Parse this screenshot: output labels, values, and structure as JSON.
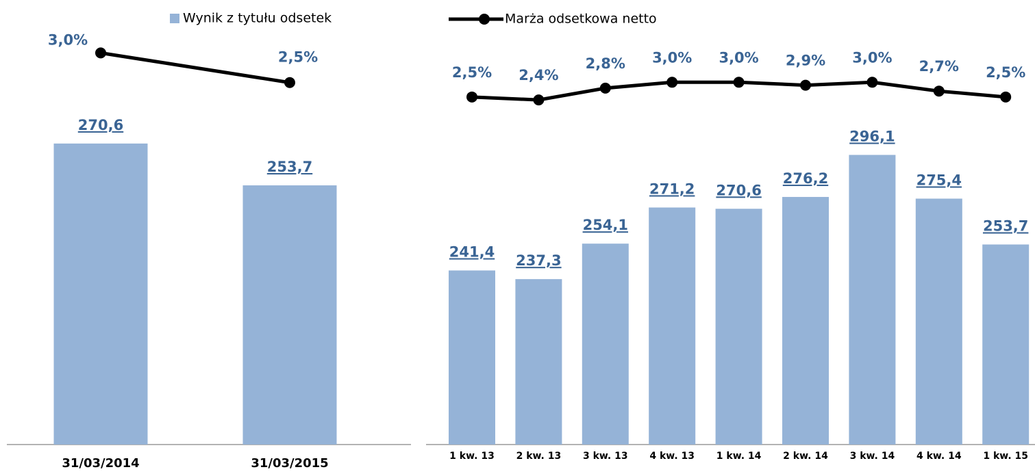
{
  "chart_data": [
    {
      "type": "bar",
      "categories": [
        "31/03/2014",
        "31/03/2015"
      ],
      "series": [
        {
          "name": "Wynik z tytułu odsetek",
          "color": "#95b3d7",
          "values": [
            270.6,
            253.7
          ],
          "value_labels": [
            "270,6",
            "253,7"
          ]
        },
        {
          "type": "line",
          "axis": "y2",
          "color": "#000000",
          "values": [
            3.0,
            2.5
          ],
          "value_labels": [
            "3,0%",
            "2,5%"
          ]
        }
      ],
      "ylim": [
        149,
        312
      ],
      "y2lim": [
        -3.6,
        3.2
      ],
      "legend": "top"
    },
    {
      "type": "bar",
      "categories": [
        "1 kw. 13",
        "2 kw. 13",
        "3 kw. 13",
        "4 kw. 13",
        "1 kw. 14",
        "2 kw. 14",
        "3 kw. 14",
        "4 kw. 14",
        "1 kw. 15"
      ],
      "series": [
        {
          "color": "#95b3d7",
          "values": [
            241.4,
            237.3,
            254.1,
            271.2,
            270.6,
            276.2,
            296.1,
            275.4,
            253.7
          ],
          "value_labels": [
            "241,4",
            "237,3",
            "254,1",
            "271,2",
            "270,6",
            "276,2",
            "296,1",
            "275,4",
            "253,7"
          ]
        },
        {
          "name": "Marża odsetkowa netto",
          "type": "line",
          "axis": "y2",
          "color": "#000000",
          "values": [
            2.5,
            2.4,
            2.8,
            3.0,
            3.0,
            2.9,
            3.0,
            2.7,
            2.5
          ],
          "value_labels": [
            "2,5%",
            "2,4%",
            "2,8%",
            "3,0%",
            "3,0%",
            "2,9%",
            "3,0%",
            "2,7%",
            "2,5%"
          ]
        }
      ],
      "ylim": [
        159,
        350
      ],
      "y2lim": [
        -9.3,
        4.4
      ],
      "legend": "top"
    }
  ]
}
